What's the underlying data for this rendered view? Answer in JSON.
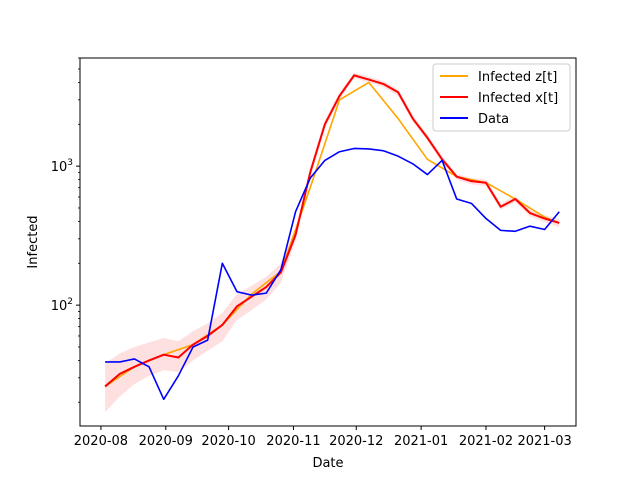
{
  "chart_data": {
    "type": "line",
    "title": "",
    "xlabel": "Date",
    "ylabel": "Infected",
    "yscale": "log",
    "ylim": [
      13.5,
      6000
    ],
    "xlim": [
      "2020-07-22",
      "2021-03-16"
    ],
    "x_ticks": [
      "2020-08",
      "2020-09",
      "2020-10",
      "2020-11",
      "2020-12",
      "2021-01",
      "2021-02",
      "2021-03"
    ],
    "y_ticks": [
      {
        "value": 100,
        "base": "10",
        "exp": "2"
      },
      {
        "value": 1000,
        "base": "10",
        "exp": "3"
      }
    ],
    "grid": false,
    "legend_position": "top-right",
    "series": [
      {
        "name": "Infected z[t]",
        "color": "#ffa500",
        "x": [
          "2020-08-03",
          "2020-08-17",
          "2020-08-31",
          "2020-09-14",
          "2020-09-28",
          "2020-10-12",
          "2020-10-26",
          "2020-11-09",
          "2020-11-23",
          "2020-12-07",
          "2020-12-21",
          "2021-01-04",
          "2021-01-18",
          "2021-02-01",
          "2021-02-15",
          "2021-03-01",
          "2021-03-08"
        ],
        "values": [
          26,
          36,
          44,
          52,
          72,
          120,
          175,
          700,
          3000,
          4000,
          2200,
          1120,
          840,
          760,
          580,
          430,
          390
        ]
      },
      {
        "name": "Infected x[t]",
        "color": "#ff0000",
        "x": [
          "2020-08-03",
          "2020-08-10",
          "2020-08-17",
          "2020-08-24",
          "2020-08-31",
          "2020-09-07",
          "2020-09-14",
          "2020-09-21",
          "2020-09-28",
          "2020-10-05",
          "2020-10-12",
          "2020-10-19",
          "2020-10-26",
          "2020-11-02",
          "2020-11-09",
          "2020-11-16",
          "2020-11-23",
          "2020-11-30",
          "2020-12-07",
          "2020-12-14",
          "2020-12-21",
          "2020-12-28",
          "2021-01-04",
          "2021-01-11",
          "2021-01-18",
          "2021-01-25",
          "2021-02-01",
          "2021-02-08",
          "2021-02-15",
          "2021-02-22",
          "2021-03-01",
          "2021-03-08"
        ],
        "values": [
          26,
          32,
          36,
          40,
          44,
          42,
          52,
          60,
          72,
          98,
          115,
          135,
          172,
          320,
          900,
          2000,
          3200,
          4500,
          4200,
          3900,
          3400,
          2200,
          1600,
          1120,
          840,
          780,
          760,
          510,
          580,
          460,
          420,
          390
        ],
        "band_lower": [
          17,
          22,
          27,
          31,
          34,
          33,
          40,
          47,
          55,
          78,
          92,
          110,
          145,
          290,
          820,
          1850,
          3000,
          4300,
          4000,
          3700,
          3200,
          2080,
          1520,
          1060,
          800,
          740,
          720,
          485,
          550,
          435,
          395,
          365
        ],
        "band_upper": [
          38,
          45,
          50,
          54,
          58,
          55,
          65,
          74,
          88,
          120,
          138,
          160,
          200,
          355,
          980,
          2150,
          3400,
          4700,
          4400,
          4100,
          3600,
          2320,
          1680,
          1180,
          880,
          820,
          800,
          540,
          610,
          485,
          445,
          415
        ]
      },
      {
        "name": "Data",
        "color": "#0000ff",
        "x": [
          "2020-08-03",
          "2020-08-10",
          "2020-08-17",
          "2020-08-24",
          "2020-08-31",
          "2020-09-07",
          "2020-09-14",
          "2020-09-21",
          "2020-09-28",
          "2020-10-05",
          "2020-10-12",
          "2020-10-19",
          "2020-10-26",
          "2020-11-02",
          "2020-11-09",
          "2020-11-16",
          "2020-11-23",
          "2020-11-30",
          "2020-12-07",
          "2020-12-14",
          "2020-12-21",
          "2020-12-28",
          "2021-01-04",
          "2021-01-11",
          "2021-01-18",
          "2021-01-25",
          "2021-02-01",
          "2021-02-08",
          "2021-02-15",
          "2021-02-22",
          "2021-03-01",
          "2021-03-08"
        ],
        "values": [
          39,
          39,
          41,
          36,
          21,
          31,
          50,
          56,
          200,
          125,
          118,
          122,
          180,
          470,
          820,
          1100,
          1270,
          1340,
          1330,
          1290,
          1180,
          1040,
          870,
          1100,
          580,
          540,
          420,
          345,
          340,
          370,
          350,
          470
        ]
      }
    ]
  }
}
